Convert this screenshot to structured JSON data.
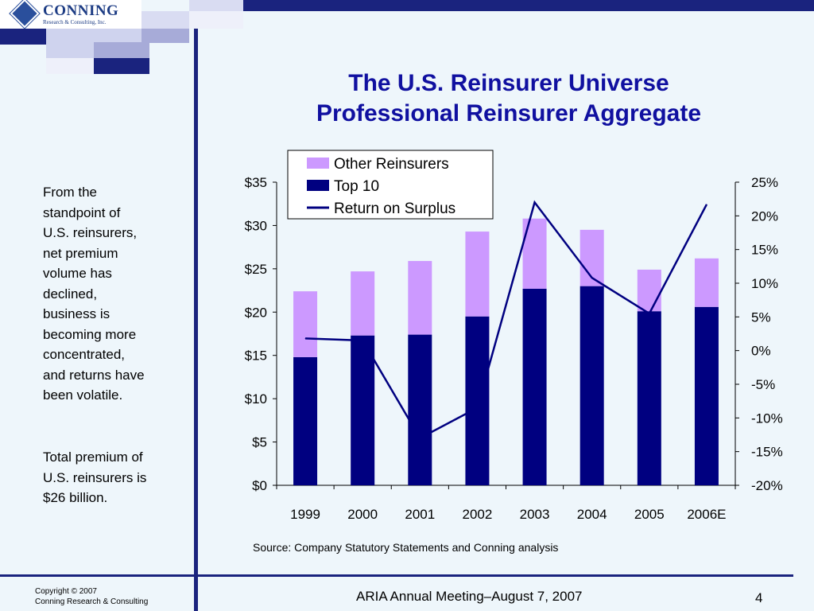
{
  "logo": {
    "name": "CONNING",
    "subtitle": "Research & Consulting, Inc."
  },
  "title_line1": "The U.S. Reinsurer Universe",
  "title_line2": "Professional Reinsurer Aggregate",
  "sidebar": {
    "paragraph1": [
      "From the",
      "standpoint of",
      "U.S. reinsurers,",
      "net premium",
      "volume has",
      "declined,",
      "business is",
      "becoming more",
      "concentrated,",
      "and returns have",
      "been volatile."
    ],
    "paragraph2": [
      "Total premium of",
      "U.S. reinsurers is",
      "$26 billion."
    ]
  },
  "source": "Source: Company Statutory Statements and Conning analysis",
  "footer": {
    "copyright_line1": "Copyright © 2007",
    "copyright_line2": "Conning Research & Consulting",
    "meeting": "ARIA Annual Meeting–August 7, 2007",
    "page": "4"
  },
  "chart_data": {
    "type": "bar",
    "stacked": true,
    "categories": [
      "1999",
      "2000",
      "2001",
      "2002",
      "2003",
      "2004",
      "2005",
      "2006E"
    ],
    "series": [
      {
        "name": "Top 10",
        "kind": "bar",
        "axis": "left",
        "color": "#000080",
        "values": [
          14.8,
          17.3,
          17.4,
          19.5,
          22.7,
          23.0,
          20.1,
          20.6
        ]
      },
      {
        "name": "Other Reinsurers",
        "kind": "bar",
        "axis": "left",
        "color": "#cc99ff",
        "values": [
          7.6,
          7.4,
          8.5,
          9.8,
          8.1,
          6.5,
          4.8,
          5.6
        ]
      },
      {
        "name": "Return on Surplus",
        "kind": "line",
        "axis": "right",
        "color": "#000080",
        "values": [
          1.8,
          1.5,
          -13.0,
          -8.5,
          22.0,
          10.8,
          5.5,
          21.7
        ]
      }
    ],
    "left_axis": {
      "min": 0,
      "max": 35,
      "step": 5,
      "tick_labels": [
        "$0",
        "$5",
        "$10",
        "$15",
        "$20",
        "$25",
        "$30",
        "$35"
      ]
    },
    "right_axis": {
      "min": -20,
      "max": 25,
      "step": 5,
      "tick_labels": [
        "-20%",
        "-15%",
        "-10%",
        "-5%",
        "0%",
        "5%",
        "10%",
        "15%",
        "20%",
        "25%"
      ]
    },
    "legend_order": [
      "Other Reinsurers",
      "Top 10",
      "Return on Surplus"
    ],
    "legend_position": "top-center",
    "grid": false
  }
}
